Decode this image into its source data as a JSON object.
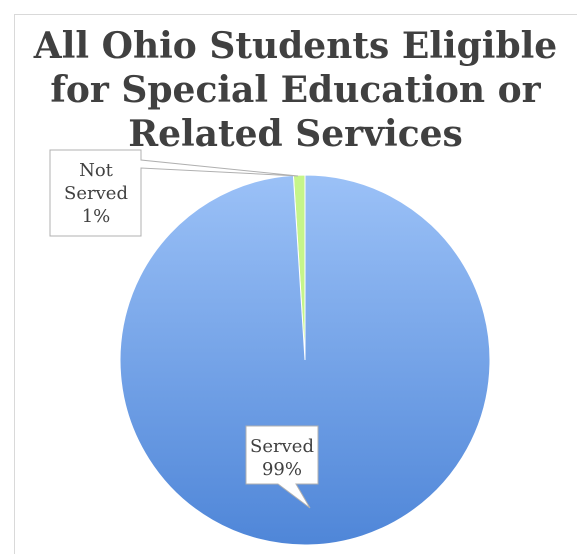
{
  "chart_data": {
    "type": "pie",
    "title": "All Ohio Students Eligible for Special Education or Related Services",
    "slices": [
      {
        "label": "Not Served",
        "value": 1,
        "display": "1%"
      },
      {
        "label": "Served",
        "value": 99,
        "display": "99%"
      }
    ],
    "colors": {
      "Not Served": "#c6f58a",
      "Served_top": "#9bc1f7",
      "Served_bottom": "#4f86d8",
      "label_border": "#b0b0b0",
      "text": "#404040"
    },
    "legend": "none"
  }
}
